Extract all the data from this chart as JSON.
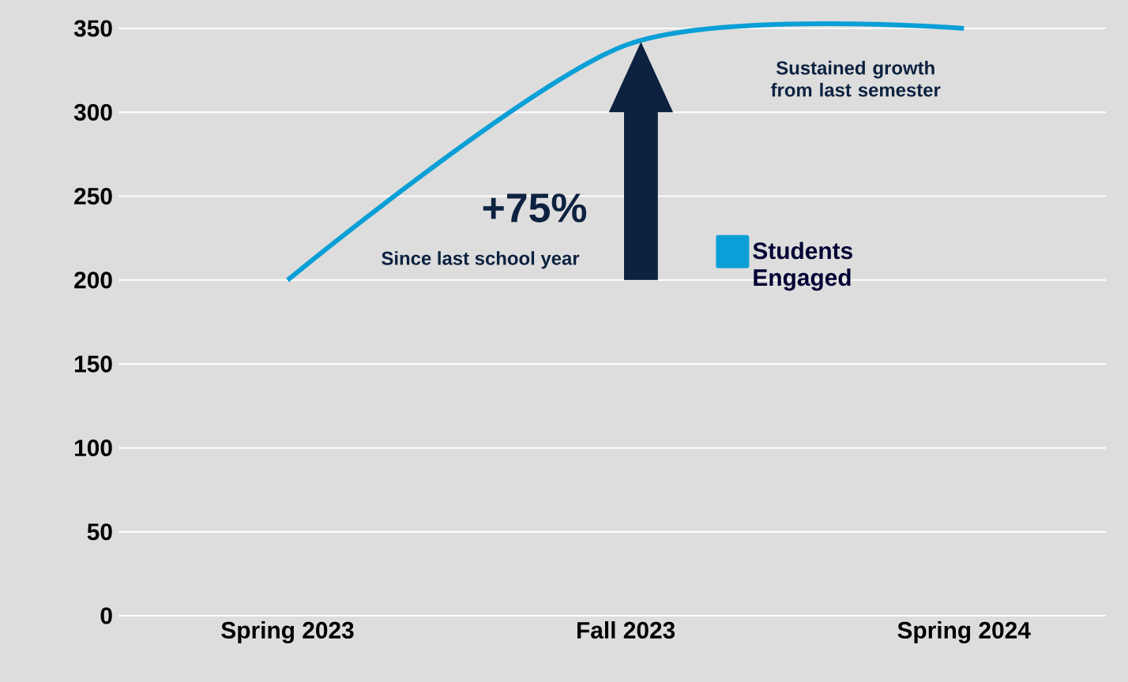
{
  "chart_data": {
    "type": "line",
    "categories": [
      "Spring 2023",
      "Fall 2023",
      "Spring 2024"
    ],
    "series": [
      {
        "name": "Students Engaged",
        "color": "#0a9fd6",
        "values": [
          200,
          340,
          350
        ]
      }
    ],
    "ylim": [
      0,
      350
    ],
    "yticks": [
      0,
      50,
      100,
      150,
      200,
      250,
      300,
      350
    ],
    "grid": "y",
    "legend": "right",
    "marker": "none",
    "line_style": "solid",
    "annotations": [
      "+75%",
      "Since last school year",
      "Sustained growth from last semester"
    ]
  }
}
